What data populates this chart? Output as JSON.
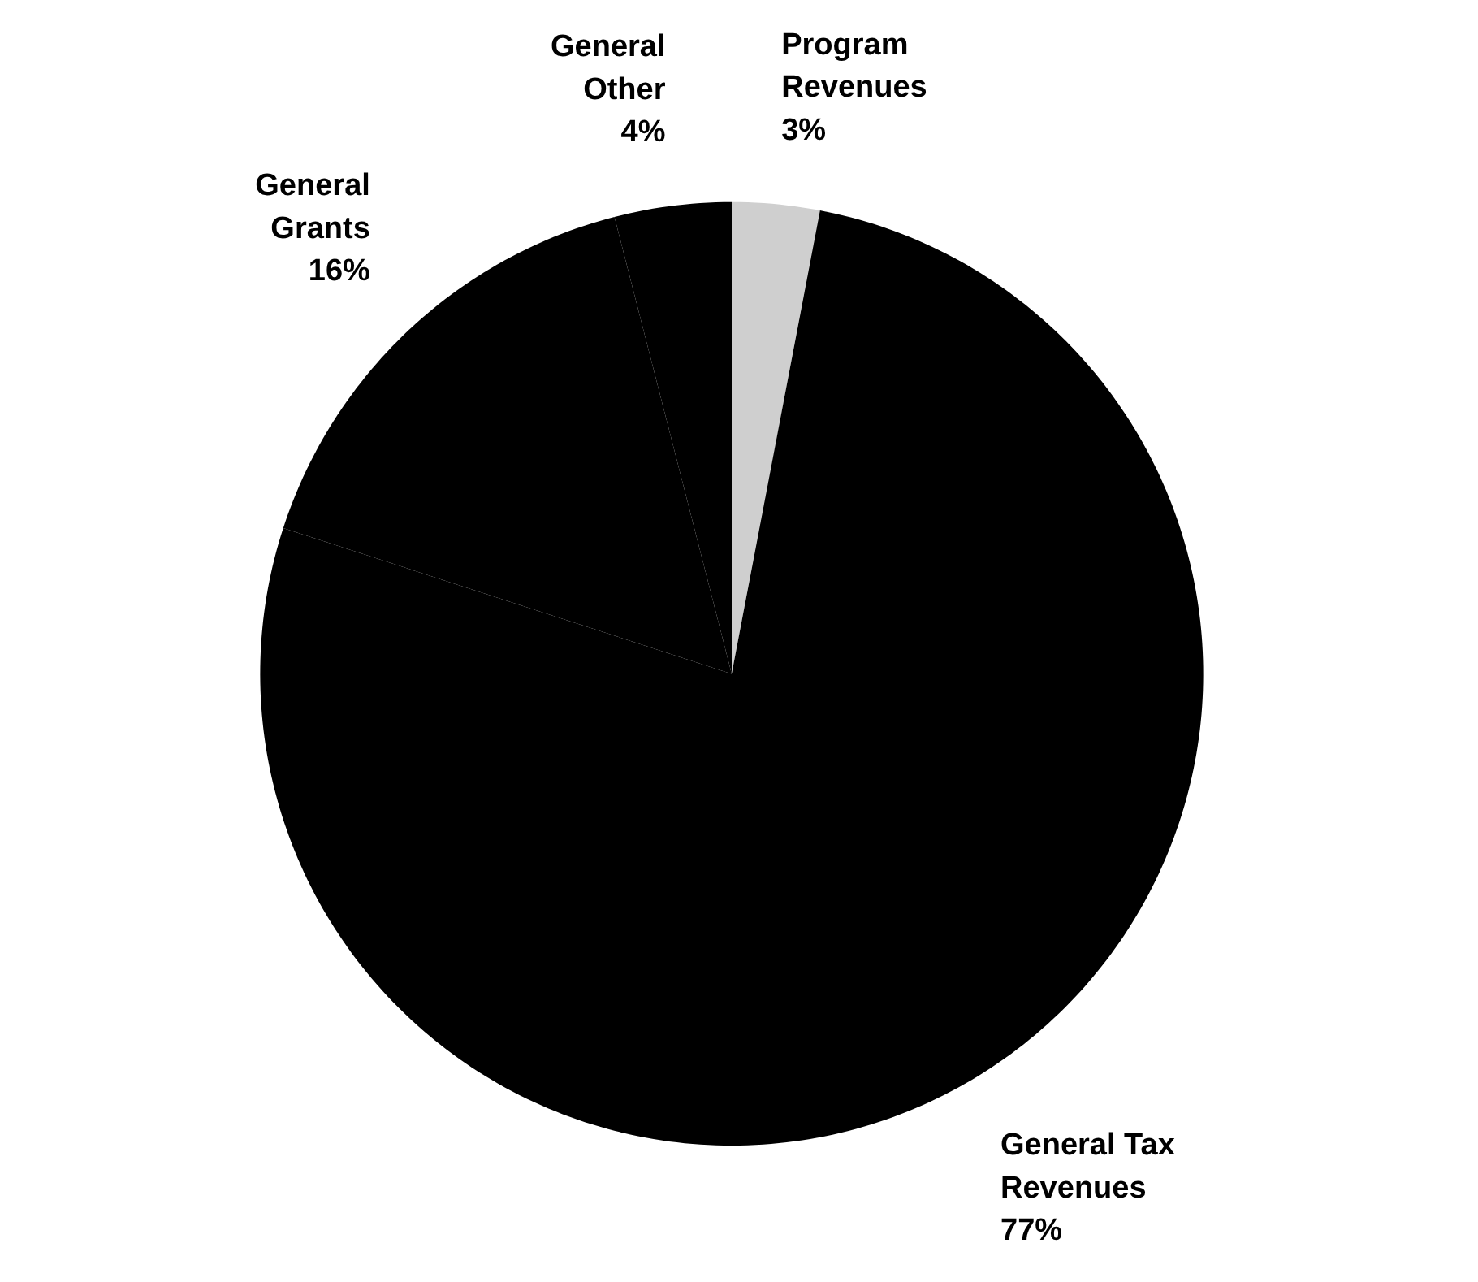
{
  "chart_data": {
    "type": "pie",
    "categories": [
      "Program Revenues",
      "General Tax Revenues",
      "General Grants",
      "General Other"
    ],
    "values": [
      3,
      77,
      16,
      4
    ],
    "colors": [
      "#cfcfcf",
      "#000000",
      "#000000",
      "#000000"
    ],
    "value_labels": [
      "3%",
      "77%",
      "16%",
      "4%"
    ]
  }
}
